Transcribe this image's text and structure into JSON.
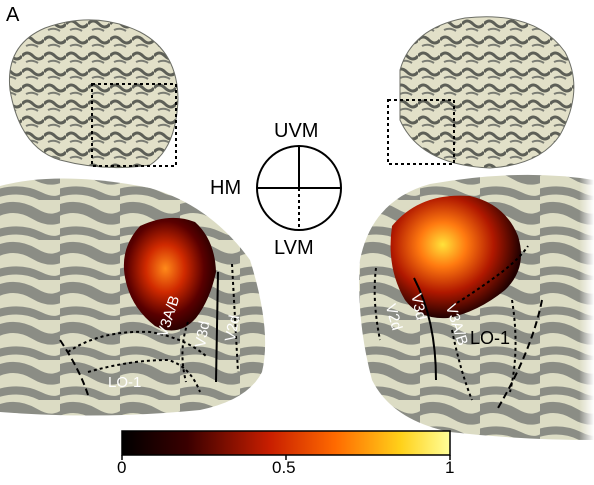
{
  "panel_label": "A",
  "visual_field_dial": {
    "upper": "UVM",
    "horizontal": "HM",
    "lower": "LVM"
  },
  "left_hemisphere_labels": [
    "V3A/B",
    "V3d",
    "V2d",
    "LO-1"
  ],
  "right_hemisphere_labels": [
    "V3A/B",
    "V3d",
    "V2d",
    "LO-1"
  ],
  "colorbar": {
    "ticks": [
      "0",
      "0.5",
      "1"
    ],
    "colors": [
      "#000000",
      "#5a0000",
      "#c81e00",
      "#ff6a00",
      "#ffd11a",
      "#ffff99"
    ]
  },
  "colors": {
    "cortex_light": "#dcdcc4",
    "cortex_dark": "#8b8d85",
    "background": "#ffffff"
  }
}
